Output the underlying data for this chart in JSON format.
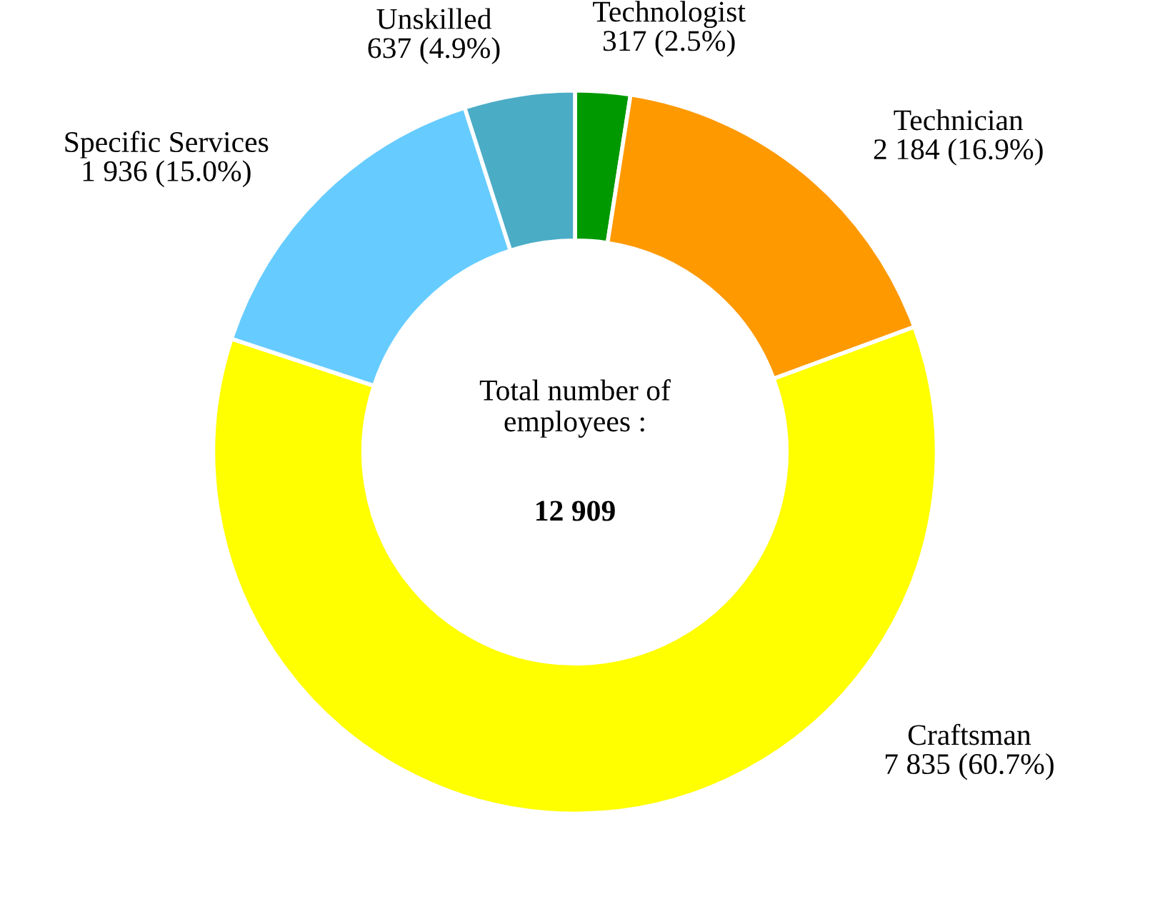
{
  "chart_data": {
    "type": "donut",
    "categories": [
      "Technologist",
      "Technician",
      "Craftsman",
      "Specific Services",
      "Unskilled"
    ],
    "values": [
      317,
      2184,
      7835,
      1936,
      637
    ],
    "value_labels": [
      "317 (2.5%)",
      "2 184 (16.9%)",
      "7 835 (60.7%)",
      "1 936 (15.0%)",
      "637 (4.9%)"
    ],
    "colors": [
      "#009900",
      "#ff9900",
      "#ffff00",
      "#66ccff",
      "#4bacc6"
    ],
    "annotations": [
      "Total number of\nemployees :",
      "12 909"
    ],
    "legend": false
  }
}
